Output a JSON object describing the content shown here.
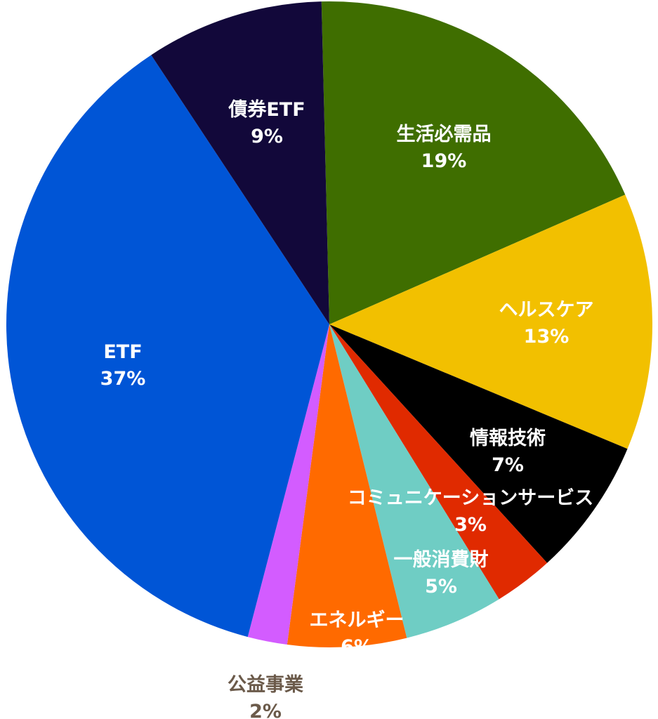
{
  "chart_data": {
    "type": "pie",
    "title": "",
    "start": "top",
    "direction": "clockwise",
    "slices": [
      {
        "label": "生活必需品",
        "value": 19,
        "pct_label": "19%",
        "color": "#3f6e00",
        "text_color": "#ffffff"
      },
      {
        "label": "ヘルスケア",
        "value": 13,
        "pct_label": "13%",
        "color": "#f2c000",
        "text_color": "#ffffff"
      },
      {
        "label": "情報技術",
        "value": 7,
        "pct_label": "7%",
        "color": "#000000",
        "text_color": "#ffffff"
      },
      {
        "label": "コミュニケーションサービス",
        "value": 3,
        "pct_label": "3%",
        "color": "#e02a00",
        "text_color": "#ffffff"
      },
      {
        "label": "一般消費財",
        "value": 5,
        "pct_label": "5%",
        "color": "#6fcdc4",
        "text_color": "#ffffff"
      },
      {
        "label": "エネルギー",
        "value": 6,
        "pct_label": "6%",
        "color": "#ff6a00",
        "text_color": "#ffffff"
      },
      {
        "label": "公益事業",
        "value": 2,
        "pct_label": "2%",
        "color": "#d35cff",
        "text_color": "#6b5a4a"
      },
      {
        "label": "ETF",
        "value": 37,
        "pct_label": "37%",
        "color": "#0055d6",
        "text_color": "#ffffff"
      },
      {
        "label": "債券ETF",
        "value": 9,
        "pct_label": "9%",
        "color": "#12083a",
        "text_color": "#ffffff"
      }
    ]
  }
}
